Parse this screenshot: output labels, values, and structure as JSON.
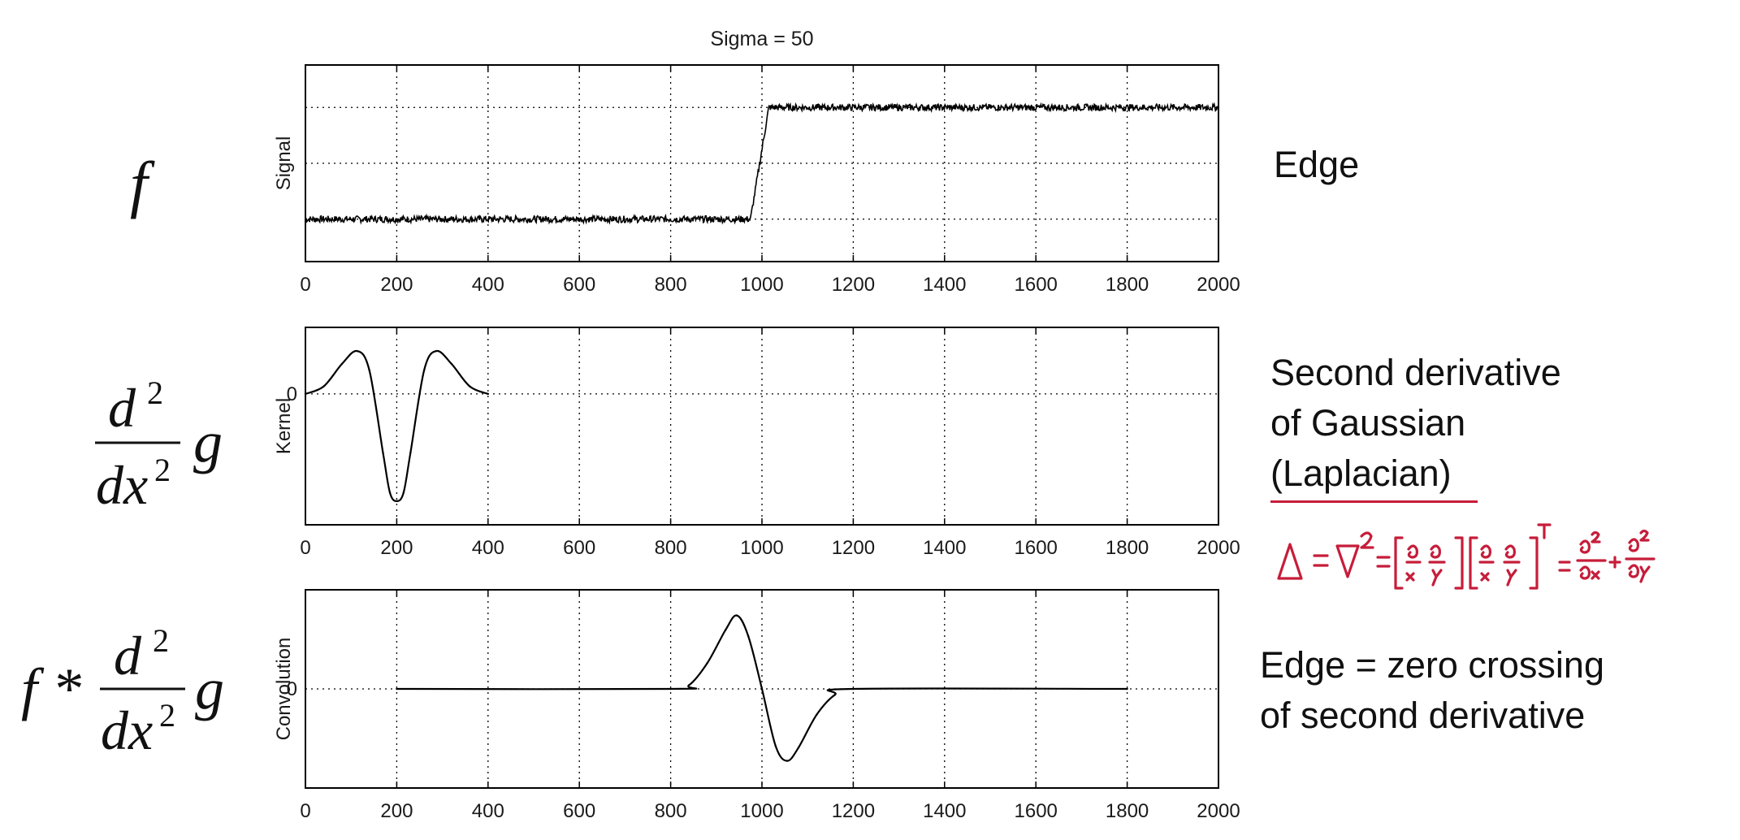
{
  "figure": {
    "title": "Sigma = 50",
    "math_labels": {
      "f": "f",
      "d2": "d",
      "sup2": "2",
      "dx2": "dx",
      "g": "g",
      "star": "f *"
    },
    "side_labels": {
      "edge": "Edge",
      "second_line1": "Second derivative",
      "second_line2": "of Gaussian",
      "second_line3": "(Laplacian)",
      "zero_line1": "Edge = zero crossing",
      "zero_line2": "of second derivative"
    },
    "handwritten_note": "Δ = ∇² = [∂/∂x ∂/∂y][∂/∂x ∂/∂y]ᵀ = ∂²/∂x² + ∂²/∂y²",
    "colors": {
      "handwriting": "#c61d3a",
      "axes": "#000000",
      "grid": "#000000"
    }
  },
  "chart_data": [
    {
      "type": "line",
      "ylabel": "Signal",
      "xlim": [
        0,
        2000
      ],
      "xticks": [
        0,
        200,
        400,
        600,
        800,
        1000,
        1200,
        1400,
        1600,
        1800,
        2000
      ],
      "yticks": [],
      "grid": true,
      "description_values": {
        "low_level": 0.0,
        "high_level": 1.0,
        "step_from": 975,
        "step_to": 1015,
        "noise_amplitude": 0.03
      },
      "x": [
        0,
        975,
        1015,
        2000
      ],
      "y": [
        0.0,
        0.0,
        1.0,
        1.0
      ]
    },
    {
      "type": "line",
      "ylabel": "Kernel",
      "xlim": [
        0,
        2000
      ],
      "xticks": [
        0,
        200,
        400,
        600,
        800,
        1000,
        1200,
        1400,
        1600,
        1800,
        2000
      ],
      "yticks": [
        0
      ],
      "grid": true,
      "x": [
        0,
        40,
        80,
        113,
        140,
        170,
        185,
        200,
        215,
        230,
        260,
        287,
        320,
        360,
        400
      ],
      "y": [
        0.0,
        0.07,
        0.28,
        0.4,
        0.22,
        -0.55,
        -0.92,
        -1.0,
        -0.92,
        -0.55,
        0.22,
        0.4,
        0.28,
        0.07,
        0.0
      ]
    },
    {
      "type": "line",
      "ylabel": "Convolution",
      "xlim": [
        0,
        2000
      ],
      "xticks": [
        0,
        200,
        400,
        600,
        800,
        1000,
        1200,
        1400,
        1600,
        1800,
        2000
      ],
      "yticks": [
        0
      ],
      "grid": true,
      "x": [
        200,
        800,
        840,
        880,
        920,
        945,
        970,
        1000,
        1030,
        1055,
        1080,
        1120,
        1160,
        1200,
        1800
      ],
      "y": [
        0.0,
        0.0,
        0.05,
        0.35,
        0.8,
        1.0,
        0.72,
        0.0,
        -0.78,
        -0.98,
        -0.8,
        -0.35,
        -0.08,
        0.0,
        0.0
      ]
    }
  ]
}
